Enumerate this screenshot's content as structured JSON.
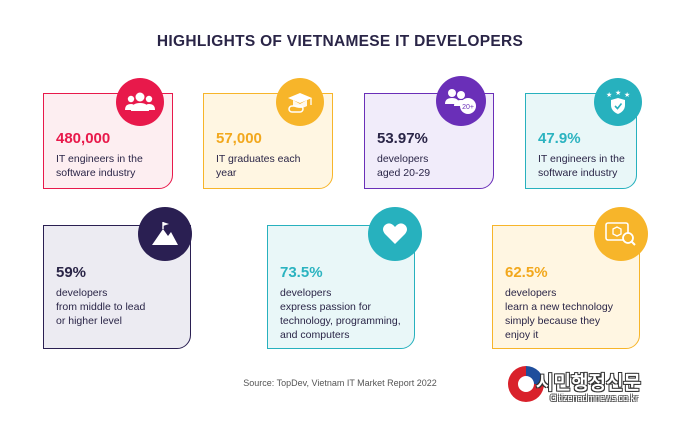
{
  "title": "HIGHLIGHTS OF VIETNAMESE IT DEVELOPERS",
  "cards": [
    {
      "stat": "480,000",
      "desc": "IT engineers in the\nsoftware industry",
      "icon": "people-group-icon",
      "stat_color": "#e8194b",
      "circle_color": "#e8194b",
      "bg": "#fdeef1",
      "border": "#e8194b"
    },
    {
      "stat": "57,000",
      "desc": "IT graduates each\nyear",
      "icon": "graduation-cap-icon",
      "stat_color": "#f2a81d",
      "circle_color": "#f7b52a",
      "bg": "#fff6e2",
      "border": "#f7b52a"
    },
    {
      "stat": "53.97%",
      "desc": "developers\naged 20-29",
      "icon": "people-20-plus-icon",
      "icon_badge": "20+",
      "stat_color": "#2a2547",
      "circle_color": "#6a2fb8",
      "bg": "#f1ecfa",
      "border": "#6a2fb8"
    },
    {
      "stat": "47.9%",
      "desc": "IT engineers in the\nsoftware industry",
      "icon": "shield-stars-icon",
      "stat_color": "#2bb3c0",
      "circle_color": "#27b1be",
      "bg": "#e9f7f8",
      "border": "#27b1be"
    },
    {
      "stat": "59%",
      "desc": "developers\nfrom middle to lead\nor higher level",
      "icon": "mountain-flag-icon",
      "stat_color": "#2a2547",
      "circle_color": "#2a1f52",
      "bg": "#ecebf2",
      "border": "#2a1f52"
    },
    {
      "stat": "73.5%",
      "desc": "developers\nexpress passion for\ntechnology, programming,\nand computers",
      "icon": "heart-icon",
      "stat_color": "#2bb3c0",
      "circle_color": "#27b1be",
      "bg": "#e9f7f8",
      "border": "#27b1be"
    },
    {
      "stat": "62.5%",
      "desc": "developers\nlearn a new technology\nsimply because they\nenjoy it",
      "icon": "cube-search-icon",
      "stat_color": "#f2a81d",
      "circle_color": "#f7b52a",
      "bg": "#fff6e2",
      "border": "#f7b52a"
    }
  ],
  "source": "Source: TopDev, Vietnam IT Market Report 2022",
  "watermark": {
    "korean": "시민행정신문",
    "english": "Citizenadmnews.co.kr"
  }
}
